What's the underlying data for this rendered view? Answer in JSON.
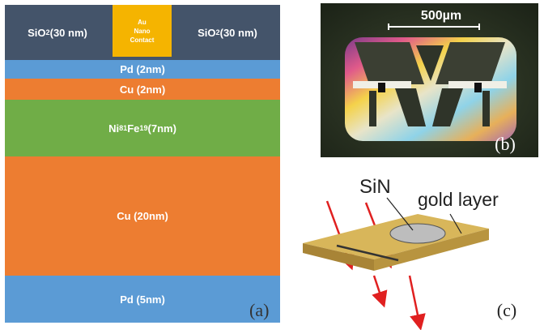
{
  "panel_a": {
    "sio2_left": "SiO",
    "sio2_left_sub": "2",
    "sio2_left_tail": " (30 nm)",
    "sio2_right": "SiO",
    "sio2_right_sub": "2",
    "sio2_right_tail": " (30 nm)",
    "au_line1": "Au",
    "au_line2": "Nano",
    "au_line3": "Contact",
    "pd_top": "Pd (2nm)",
    "cu_top": "Cu (2nm)",
    "nife_a": "Ni",
    "nife_sub1": "81",
    "nife_b": "Fe",
    "nife_sub2": "19",
    "nife_tail": " (7nm)",
    "cu_mid": "Cu (20nm)",
    "pd_bot": "Pd (5nm)",
    "letter": "(a)",
    "colors": {
      "sio2": "#44546a",
      "au": "#f5b400",
      "pd": "#5b9bd5",
      "cu": "#ed7d31",
      "nife": "#70ad47"
    }
  },
  "panel_b": {
    "scale_label": "500µm",
    "letter": "(b)"
  },
  "panel_c": {
    "sin_label": "SiN",
    "gold_label": "gold layer",
    "letter": "(c)",
    "colors": {
      "gold": "#c9a64a",
      "arrow": "#e02020"
    }
  }
}
